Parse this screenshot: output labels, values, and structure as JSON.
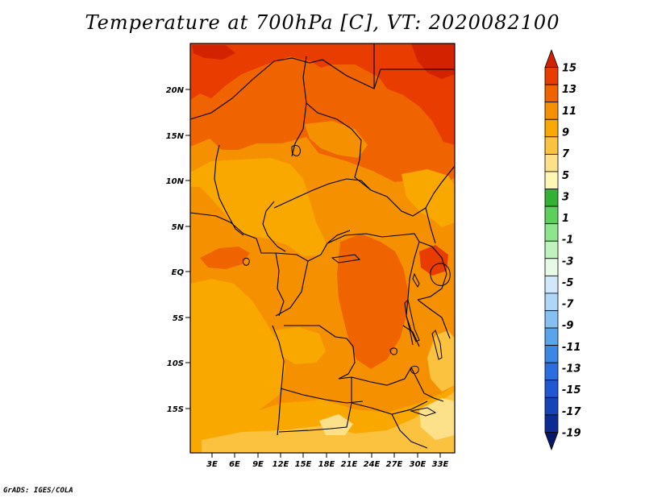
{
  "header": {
    "title": "Temperature at 700hPa [C], VT: 2020082100"
  },
  "footer": {
    "credit": "GrADS: IGES/COLA"
  },
  "chart_data": {
    "type": "heatmap",
    "title": "Temperature at 700hPa [C], VT: 2020082100",
    "variable": "Temperature",
    "level": "700hPa",
    "units": "C",
    "valid_time": "2020082100",
    "x_ticks": [
      "3E",
      "6E",
      "9E",
      "12E",
      "15E",
      "18E",
      "21E",
      "24E",
      "27E",
      "30E",
      "33E"
    ],
    "y_ticks": [
      "20N",
      "15N",
      "10N",
      "5N",
      "EQ",
      "5S",
      "10S",
      "15S"
    ],
    "colorbar": {
      "labels": [
        "15",
        "13",
        "11",
        "9",
        "7",
        "5",
        "3",
        "1",
        "-1",
        "-3",
        "-5",
        "-7",
        "-9",
        "-11",
        "-13",
        "-15",
        "-17",
        "-19"
      ],
      "colors": [
        "#d32200",
        "#e83c00",
        "#f06400",
        "#f59100",
        "#f9a800",
        "#fbc240",
        "#fde08a",
        "#fdf6b4",
        "#34b034",
        "#5ccf5c",
        "#8de68d",
        "#bff2bf",
        "#e6fae6",
        "#d0e8fa",
        "#afd6f7",
        "#86c0f2",
        "#5aa4ec",
        "#3a88e4",
        "#2a6ee0",
        "#1f58d2",
        "#1543b8",
        "#0c2c94",
        "#06186c"
      ]
    }
  }
}
